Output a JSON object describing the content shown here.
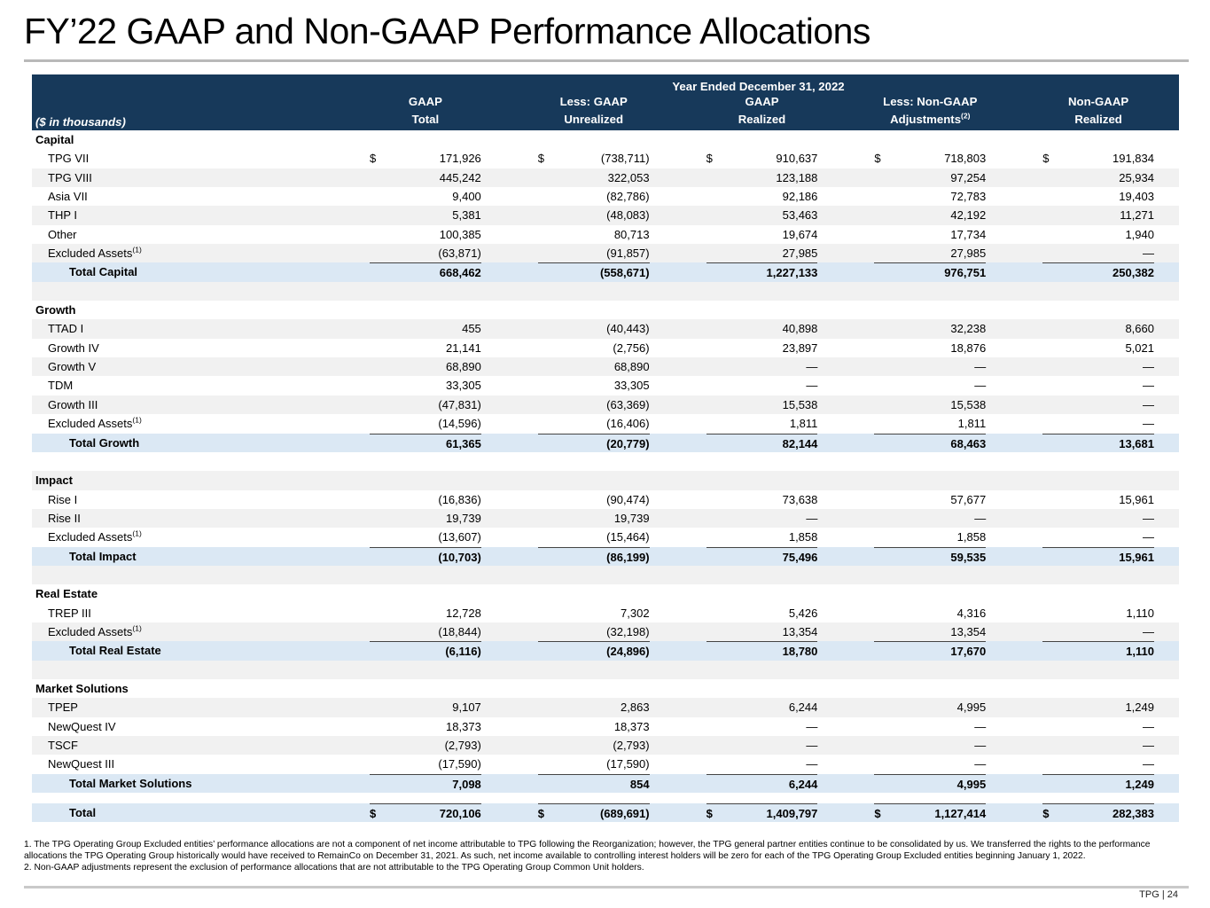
{
  "title": "FY’22 GAAP and Non-GAAP Performance Allocations",
  "table": {
    "span_header": "Year Ended December 31, 2022",
    "unit_label": "($ in thousands)",
    "columns": [
      {
        "line1": "GAAP",
        "line2": "Total"
      },
      {
        "line1": "Less: GAAP",
        "line2": "Unrealized"
      },
      {
        "line1": "GAAP",
        "line2": "Realized"
      },
      {
        "line1": "Less: Non-GAAP",
        "line2": "Adjustments",
        "sup": "(2)"
      },
      {
        "line1": "Non-GAAP",
        "line2": "Realized"
      }
    ],
    "colors": {
      "header_bg": "#17395a",
      "stripe": "#f1f1f1",
      "total_band": "#dbe8f4"
    },
    "rows": [
      {
        "t": "sec",
        "label": "Capital"
      },
      {
        "t": "d",
        "label": "TPG VII",
        "d": true,
        "v": [
          "171,926",
          "(738,711)",
          "910,637",
          "718,803",
          "191,834"
        ]
      },
      {
        "t": "d",
        "label": "TPG VIII",
        "s": "g",
        "v": [
          "445,242",
          "322,053",
          "123,188",
          "97,254",
          "25,934"
        ]
      },
      {
        "t": "d",
        "label": "Asia VII",
        "v": [
          "9,400",
          "(82,786)",
          "92,186",
          "72,783",
          "19,403"
        ]
      },
      {
        "t": "d",
        "label": "THP I",
        "s": "g",
        "v": [
          "5,381",
          "(48,083)",
          "53,463",
          "42,192",
          "11,271"
        ]
      },
      {
        "t": "d",
        "label": "Other",
        "v": [
          "100,385",
          "80,713",
          "19,674",
          "17,734",
          "1,940"
        ]
      },
      {
        "t": "d",
        "label": "Excluded Assets",
        "sup": "(1)",
        "s": "g",
        "v": [
          "(63,871)",
          "(91,857)",
          "27,985",
          "27,985",
          "—"
        ]
      },
      {
        "t": "tot",
        "label": "Total Capital",
        "v": [
          "668,462",
          "(558,671)",
          "1,227,133",
          "976,751",
          "250,382"
        ]
      },
      {
        "t": "sp",
        "s": "g"
      },
      {
        "t": "sec",
        "label": "Growth"
      },
      {
        "t": "d",
        "label": "TTAD I",
        "s": "g",
        "v": [
          "455",
          "(40,443)",
          "40,898",
          "32,238",
          "8,660"
        ]
      },
      {
        "t": "d",
        "label": "Growth IV",
        "v": [
          "21,141",
          "(2,756)",
          "23,897",
          "18,876",
          "5,021"
        ]
      },
      {
        "t": "d",
        "label": "Growth V",
        "s": "g",
        "v": [
          "68,890",
          "68,890",
          "—",
          "—",
          "—"
        ]
      },
      {
        "t": "d",
        "label": "TDM",
        "v": [
          "33,305",
          "33,305",
          "—",
          "—",
          "—"
        ]
      },
      {
        "t": "d",
        "label": "Growth III",
        "s": "g",
        "v": [
          "(47,831)",
          "(63,369)",
          "15,538",
          "15,538",
          "—"
        ]
      },
      {
        "t": "d",
        "label": "Excluded Assets",
        "sup": "(1)",
        "v": [
          "(14,596)",
          "(16,406)",
          "1,811",
          "1,811",
          "—"
        ]
      },
      {
        "t": "tot",
        "label": "Total Growth",
        "v": [
          "61,365",
          "(20,779)",
          "82,144",
          "68,463",
          "13,681"
        ]
      },
      {
        "t": "sp"
      },
      {
        "t": "sec",
        "label": "Impact",
        "s": "g"
      },
      {
        "t": "d",
        "label": "Rise I",
        "v": [
          "(16,836)",
          "(90,474)",
          "73,638",
          "57,677",
          "15,961"
        ]
      },
      {
        "t": "d",
        "label": "Rise II",
        "s": "g",
        "v": [
          "19,739",
          "19,739",
          "—",
          "—",
          "—"
        ]
      },
      {
        "t": "d",
        "label": "Excluded Assets",
        "sup": "(1)",
        "v": [
          "(13,607)",
          "(15,464)",
          "1,858",
          "1,858",
          "—"
        ]
      },
      {
        "t": "tot",
        "label": "Total Impact",
        "v": [
          "(10,703)",
          "(86,199)",
          "75,496",
          "59,535",
          "15,961"
        ]
      },
      {
        "t": "sp",
        "s": "g"
      },
      {
        "t": "sec",
        "label": "Real Estate"
      },
      {
        "t": "d",
        "label": "TREP III",
        "v": [
          "12,728",
          "7,302",
          "5,426",
          "4,316",
          "1,110"
        ]
      },
      {
        "t": "d",
        "label": "Excluded Assets",
        "sup": "(1)",
        "s": "g",
        "v": [
          "(18,844)",
          "(32,198)",
          "13,354",
          "13,354",
          "—"
        ]
      },
      {
        "t": "tot",
        "label": "Total Real Estate",
        "v": [
          "(6,116)",
          "(24,896)",
          "18,780",
          "17,670",
          "1,110"
        ]
      },
      {
        "t": "sp",
        "s": "g"
      },
      {
        "t": "sec",
        "label": "Market Solutions"
      },
      {
        "t": "d",
        "label": "TPEP",
        "s": "g",
        "v": [
          "9,107",
          "2,863",
          "6,244",
          "4,995",
          "1,249"
        ]
      },
      {
        "t": "d",
        "label": "NewQuest IV",
        "v": [
          "18,373",
          "18,373",
          "—",
          "—",
          "—"
        ]
      },
      {
        "t": "d",
        "label": "TSCF",
        "s": "g",
        "v": [
          "(2,793)",
          "(2,793)",
          "—",
          "—",
          "—"
        ]
      },
      {
        "t": "d",
        "label": "NewQuest III",
        "v": [
          "(17,590)",
          "(17,590)",
          "—",
          "—",
          "—"
        ]
      },
      {
        "t": "tot",
        "label": "Total Market Solutions",
        "v": [
          "7,098",
          "854",
          "6,244",
          "4,995",
          "1,249"
        ]
      },
      {
        "t": "sp",
        "h": 12
      },
      {
        "t": "grand",
        "label": "Total",
        "d": true,
        "v": [
          "720,106",
          "(689,691)",
          "1,409,797",
          "1,127,414",
          "282,383"
        ]
      }
    ]
  },
  "footnotes": [
    "1. The TPG Operating Group Excluded entities’ performance allocations are not a component of net income attributable to TPG following the Reorganization; however, the TPG general partner entities continue to be consolidated by us. We transferred the rights to the performance allocations the TPG Operating Group historically would have received to RemainCo on December 31, 2021. As such, net income available to controlling interest holders will be zero for each of the TPG Operating Group Excluded entities beginning January 1, 2022.",
    "2. Non-GAAP adjustments represent the exclusion of performance allocations that are not attributable to the TPG Operating Group Common Unit holders."
  ],
  "footer": {
    "page_label": "TPG | 24"
  }
}
